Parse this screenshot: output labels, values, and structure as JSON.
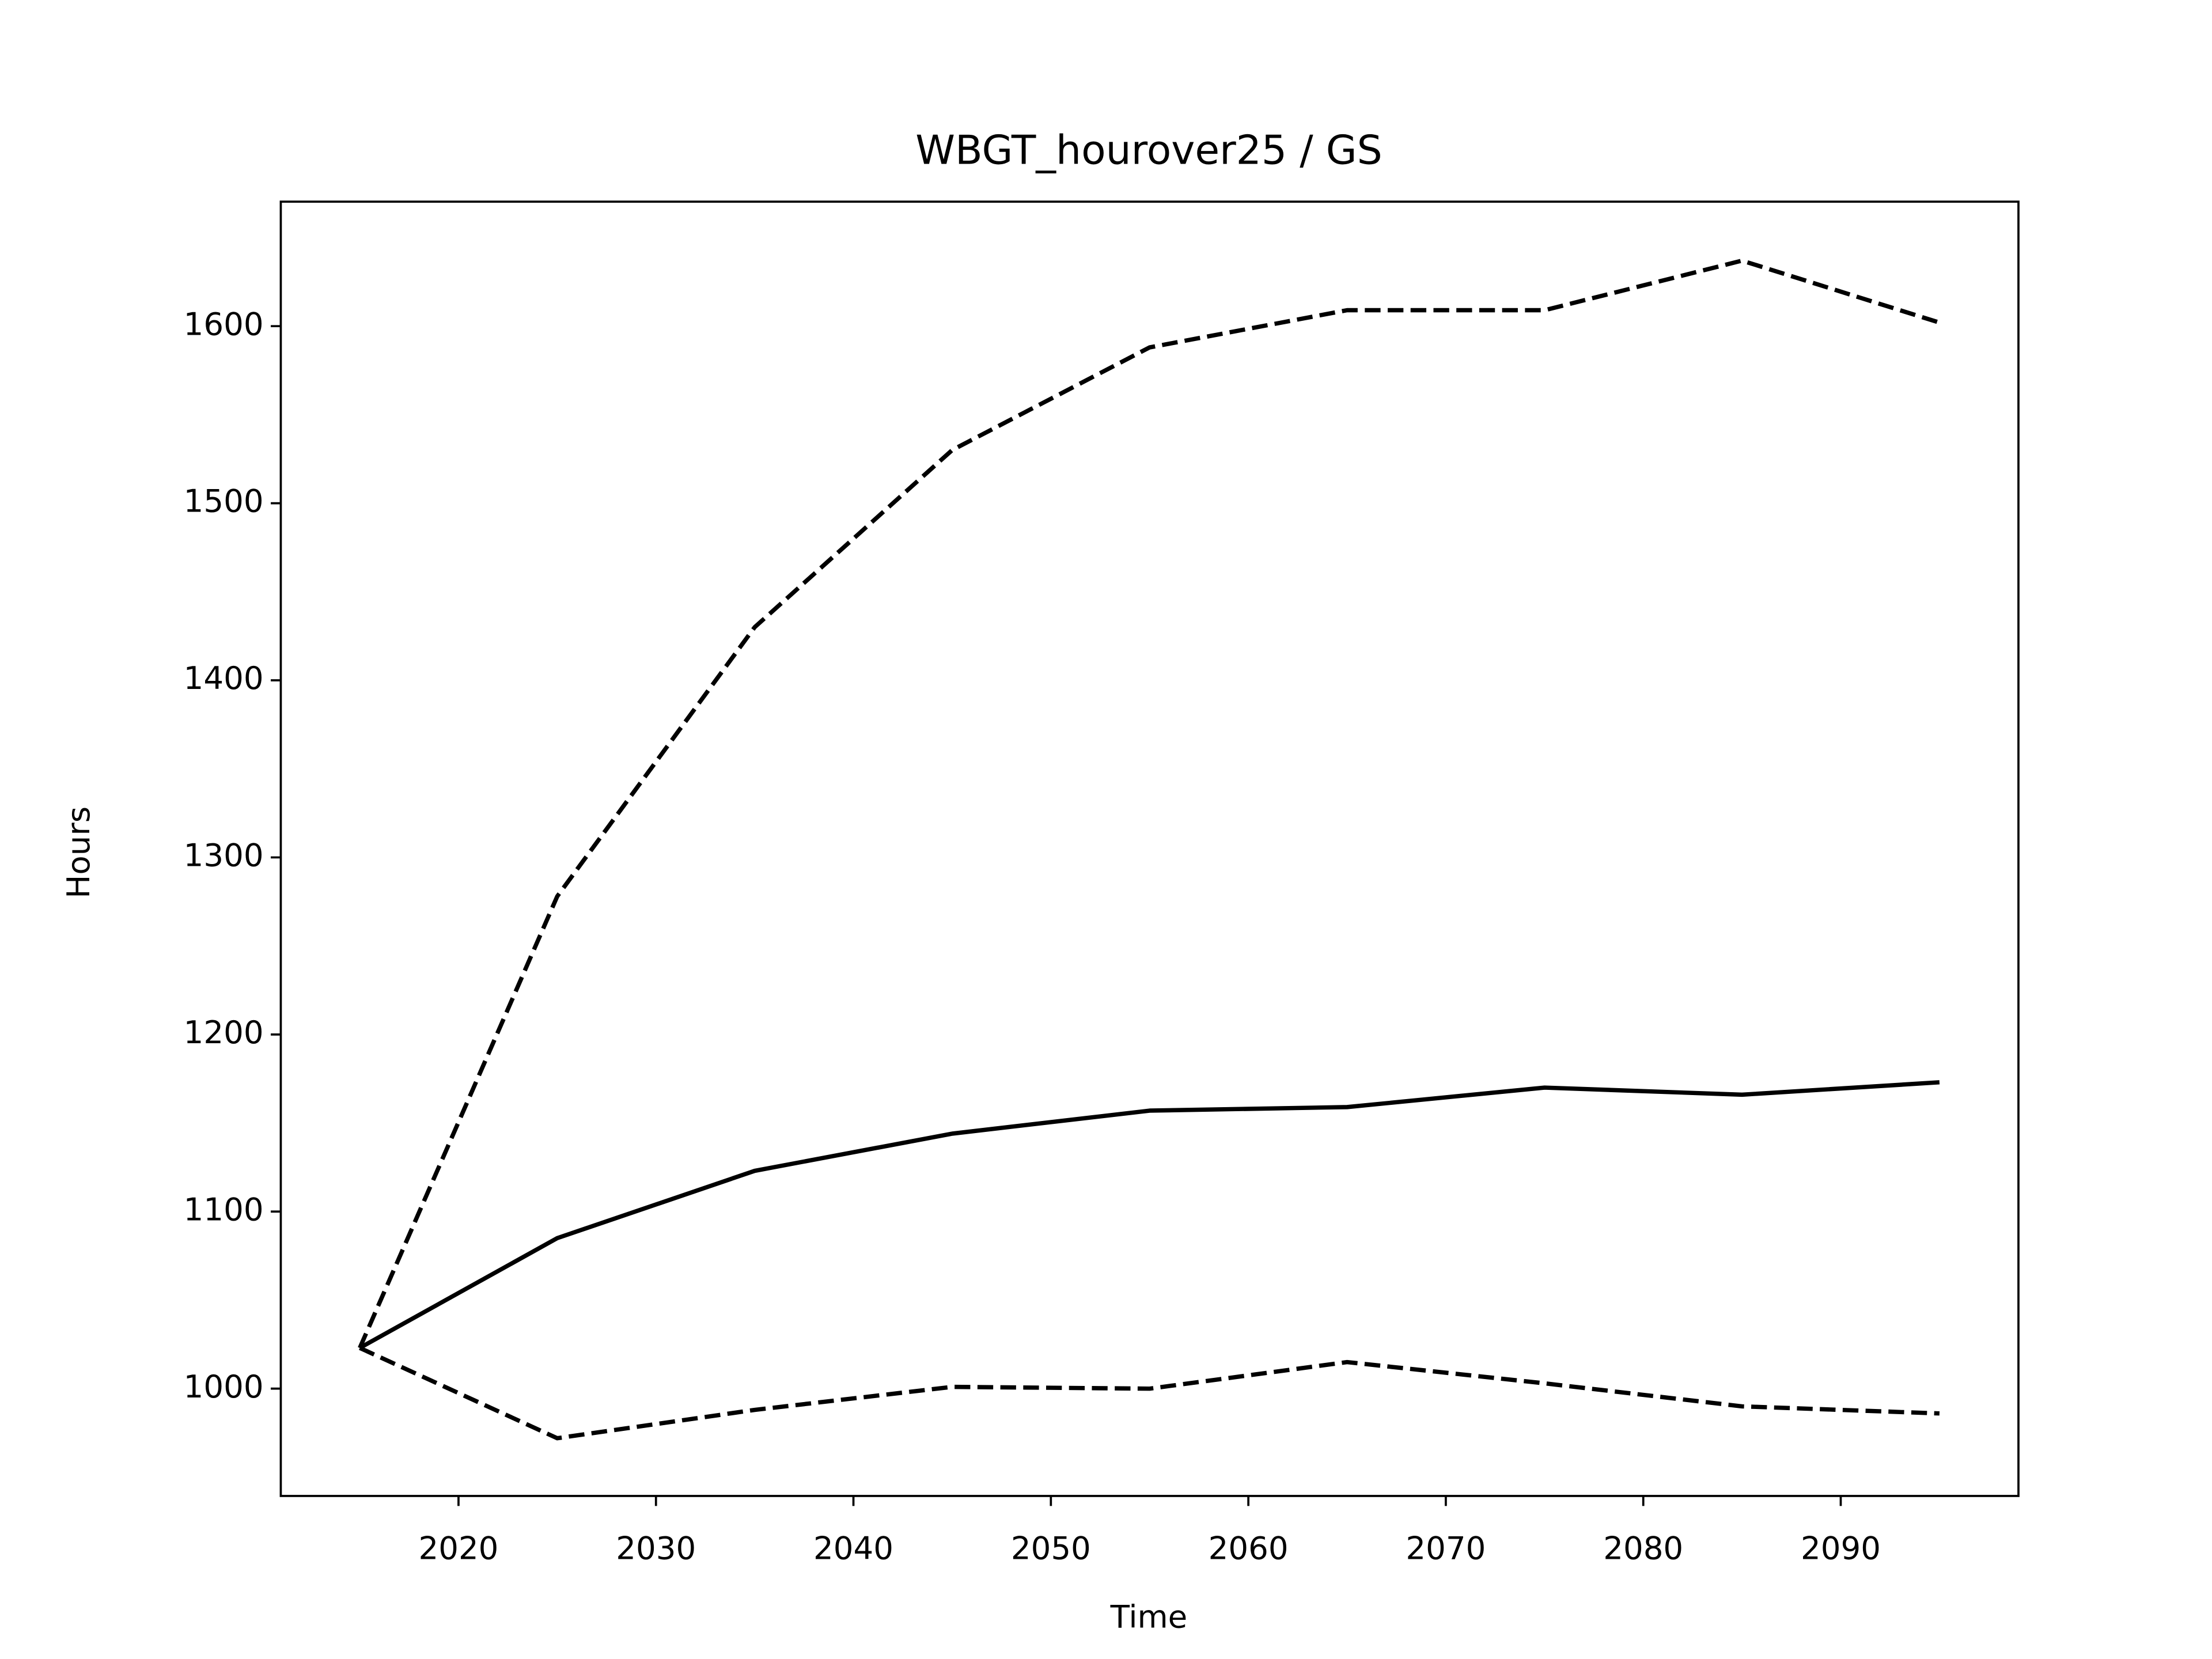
{
  "chart_data": {
    "type": "line",
    "title": "WBGT_hourover25 / GS",
    "xlabel": "Time",
    "ylabel": "Hours",
    "x": [
      2015,
      2025,
      2035,
      2045,
      2055,
      2065,
      2075,
      2085,
      2095
    ],
    "series": [
      {
        "color": "#000000",
        "linestyle": "solid",
        "values": [
          1023,
          1085,
          1123,
          1144,
          1157,
          1159,
          1170,
          1166,
          1173
        ]
      },
      {
        "color": "#000000",
        "linestyle": "dashed",
        "values": [
          1023,
          1278,
          1430,
          1530,
          1588,
          1609,
          1609,
          1637,
          1602
        ]
      },
      {
        "color": "#000000",
        "linestyle": "dashed",
        "values": [
          1023,
          972,
          988,
          1001,
          1000,
          1015,
          1003,
          990,
          986
        ]
      }
    ],
    "xlim": [
      2011,
      2099
    ],
    "xticks": [
      2020,
      2030,
      2040,
      2050,
      2060,
      2070,
      2080,
      2090
    ],
    "ylim": [
      939.4,
      1670.3
    ],
    "yticks": [
      1000,
      1100,
      1200,
      1300,
      1400,
      1500,
      1600
    ],
    "grid": false
  }
}
